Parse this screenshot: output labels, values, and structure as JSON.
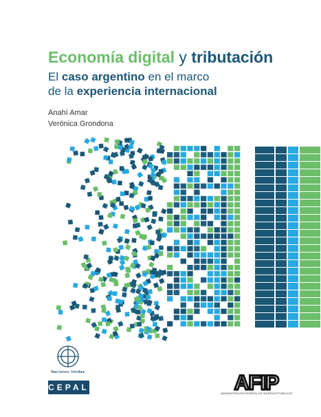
{
  "title": {
    "green": "Economía digital",
    "joiner": "y",
    "blue": "tributación"
  },
  "subtitle": {
    "line1": {
      "start": "El",
      "bold": "caso argentino",
      "end": "en el marco"
    },
    "line2": {
      "start": "de la",
      "bold": "experiencia internacional"
    }
  },
  "authors": [
    "Anahí Amar",
    "Verónica Grondona"
  ],
  "logos": {
    "un": "Naciones Unidas",
    "cepal": "CEPAL",
    "afip": "AFIP",
    "afip_caption": "ADMINISTRACIÓN FEDERAL DE INGRESOS PÚBLICOS"
  }
}
